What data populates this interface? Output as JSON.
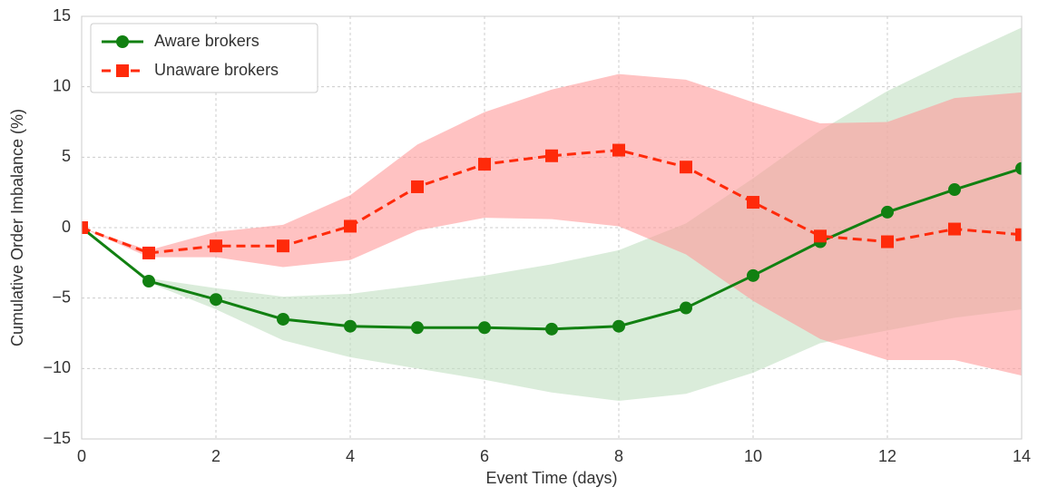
{
  "chart_data": {
    "type": "line",
    "xlabel": "Event Time (days)",
    "ylabel": "Cumulative Order Imbalance (%)",
    "x": [
      0,
      1,
      2,
      3,
      4,
      5,
      6,
      7,
      8,
      9,
      10,
      11,
      12,
      13,
      14
    ],
    "xlim": [
      0,
      14
    ],
    "xticks": [
      0,
      2,
      4,
      6,
      8,
      10,
      12,
      14
    ],
    "ylim": [
      -15,
      15
    ],
    "yticks": [
      {
        "value": -15,
        "label": "−15"
      },
      {
        "value": -10,
        "label": "−10"
      },
      {
        "value": -5,
        "label": "−5"
      },
      0,
      5,
      10,
      15
    ],
    "grid": true,
    "legend": "upper left",
    "series": [
      {
        "name": "Aware brokers",
        "color": "#118011",
        "band_color": "#c2e0c2",
        "marker": "circle",
        "linestyle": "solid",
        "values": [
          0,
          -3.8,
          -5.1,
          -6.5,
          -7.0,
          -7.1,
          -7.1,
          -7.2,
          -7.0,
          -5.7,
          -3.4,
          -1.0,
          1.1,
          2.7,
          4.2
        ],
        "lower": [
          0,
          -3.9,
          -5.8,
          -8.0,
          -9.2,
          -10.0,
          -10.8,
          -11.7,
          -12.3,
          -11.8,
          -10.3,
          -8.2,
          -7.3,
          -6.4,
          -5.8
        ],
        "upper": [
          0,
          -3.6,
          -4.3,
          -4.9,
          -4.7,
          -4.1,
          -3.4,
          -2.6,
          -1.6,
          0.3,
          3.5,
          6.9,
          9.7,
          12.0,
          14.2
        ]
      },
      {
        "name": "Unaware brokers",
        "color": "#ff2a0a",
        "band_color": "#ff9a9a",
        "marker": "square",
        "linestyle": "dashed",
        "values": [
          0,
          -1.8,
          -1.3,
          -1.3,
          0.1,
          2.9,
          4.5,
          5.1,
          5.5,
          4.3,
          1.8,
          -0.6,
          -1.0,
          -0.1,
          -0.5
        ],
        "lower": [
          0,
          -2.1,
          -2.1,
          -2.8,
          -2.3,
          -0.2,
          0.7,
          0.6,
          0.1,
          -1.9,
          -5.2,
          -7.9,
          -9.4,
          -9.4,
          -10.5
        ],
        "upper": [
          0,
          -1.6,
          -0.3,
          0.2,
          2.3,
          5.9,
          8.2,
          9.8,
          10.9,
          10.5,
          8.9,
          7.4,
          7.5,
          9.2,
          9.6
        ]
      }
    ]
  }
}
